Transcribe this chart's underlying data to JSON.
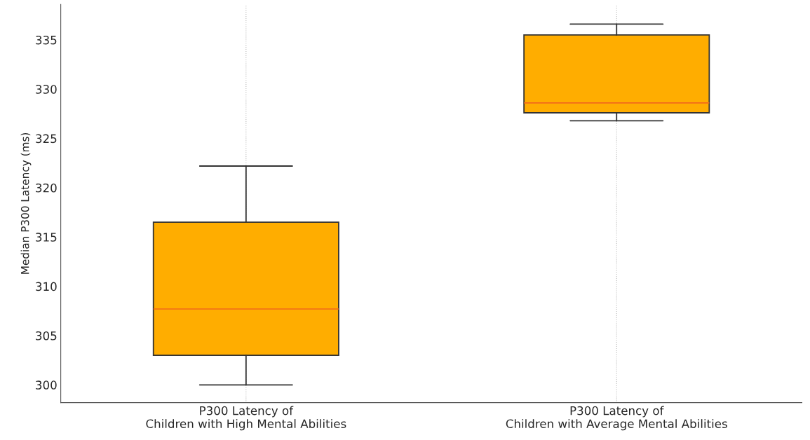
{
  "chart_data": {
    "type": "box",
    "ylabel": "Median P300 Latency (ms)",
    "categories": [
      "P300 Latency of\nChildren with High Mental Abilities",
      "P300 Latency of\nChildren with Average Mental Abilities"
    ],
    "series": [
      {
        "color": "#ffad00",
        "boxes": [
          {
            "low": 300.0,
            "q1": 303.0,
            "median": 307.7,
            "q3": 316.5,
            "high": 322.2
          },
          {
            "low": 326.8,
            "q1": 327.6,
            "median": 328.6,
            "q3": 335.5,
            "high": 336.6
          }
        ]
      }
    ],
    "ylim": [
      298.2,
      338.6
    ],
    "yticks": [
      300,
      305,
      310,
      315,
      320,
      325,
      330,
      335
    ],
    "grid": "x"
  }
}
